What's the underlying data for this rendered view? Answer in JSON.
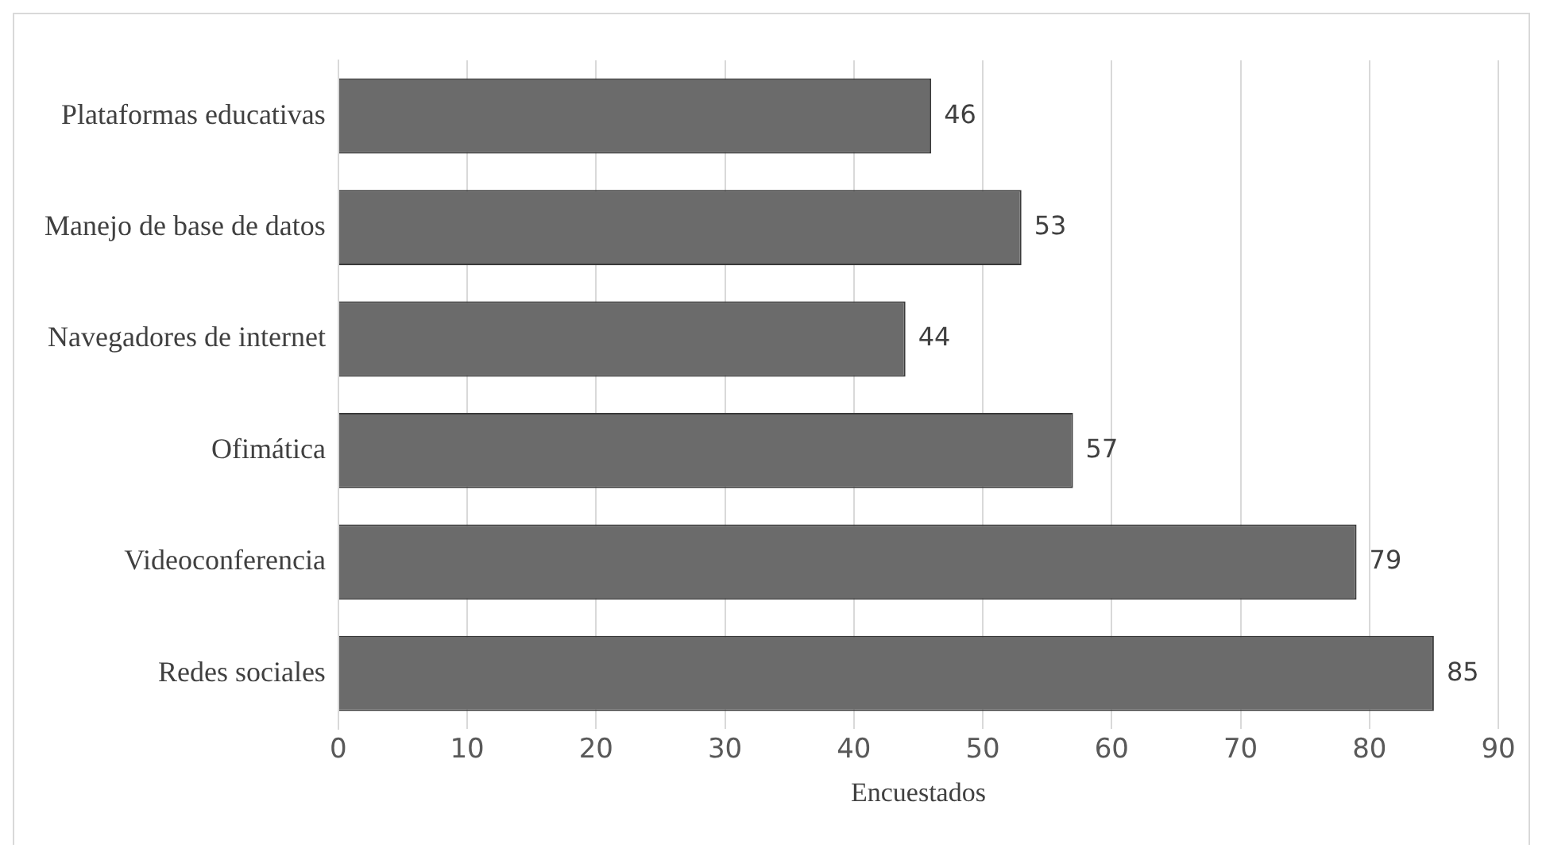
{
  "chart_data": {
    "type": "bar",
    "orientation": "horizontal",
    "xlabel": "Encuestados",
    "categories": [
      "Plataformas educativas",
      "Manejo de base de datos",
      "Navegadores de internet",
      "Ofimática",
      "Videoconferencia",
      "Redes sociales"
    ],
    "values": [
      46,
      53,
      44,
      57,
      79,
      85
    ],
    "color": "#6b6b6b",
    "xlim": [
      0,
      90
    ],
    "xticks": [
      0,
      10,
      20,
      30,
      40,
      50,
      60,
      70,
      80,
      90
    ],
    "grid": "x",
    "data_labels": true
  }
}
